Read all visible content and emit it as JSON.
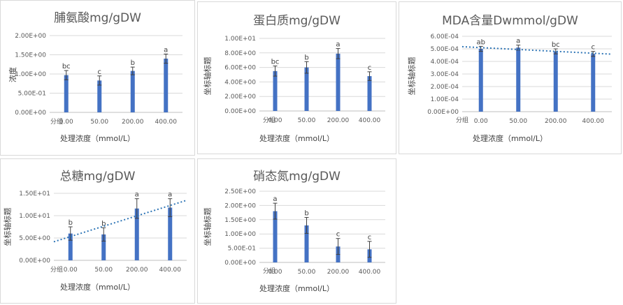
{
  "colors": {
    "bar": "#4472c4",
    "trend": "#2e75b6",
    "grid": "#d9d9d9",
    "axis": "#bfbfbf",
    "error": "#404040"
  },
  "chart_data": [
    {
      "type": "bar",
      "title": "脯氨酸mg/gDW",
      "ylabel": "浓度",
      "xlabel": "处理浓度（mmol/L）",
      "group_label": "分组",
      "categories": [
        "0.00",
        "50.00",
        "200.00",
        "400.00"
      ],
      "values": [
        0.97,
        0.83,
        1.08,
        1.4
      ],
      "errors": [
        0.12,
        0.12,
        0.1,
        0.12
      ],
      "letters": [
        "bc",
        "c",
        "b",
        "a"
      ],
      "ylim": [
        0,
        2.0
      ],
      "yticks": [
        "0.00E+00",
        "5.00E-01",
        "1.00E+00",
        "1.50E+00",
        "2.00E+00"
      ],
      "grid": true,
      "trendline": false
    },
    {
      "type": "bar",
      "title": "蛋白质mg/gDW",
      "ylabel": "坐标轴标题",
      "xlabel": "处理浓度（mmol/L）",
      "group_label": "分组",
      "categories": [
        "0.00",
        "50.00",
        "200.00",
        "400.00"
      ],
      "values": [
        5.5,
        6.0,
        7.9,
        4.8
      ],
      "errors": [
        0.7,
        0.8,
        0.7,
        0.6
      ],
      "letters": [
        "bc",
        "b",
        "a",
        "c"
      ],
      "ylim": [
        0,
        10
      ],
      "yticks": [
        "0.00E+00",
        "2.00E+00",
        "4.00E+00",
        "6.00E+00",
        "8.00E+00",
        "1.00E+01"
      ],
      "grid": true,
      "trendline": false
    },
    {
      "type": "bar",
      "title": "MDA含量Dwmmol/gDW",
      "ylabel": "坐标轴标题",
      "xlabel": "处理浓度（mmol/L）",
      "group_label": "分组",
      "categories": [
        "0.00",
        "50.00",
        "200.00",
        "400.00"
      ],
      "values": [
        0.0005,
        0.00051,
        0.00048,
        0.00046
      ],
      "errors": [
        2e-05,
        2e-05,
        2e-05,
        2e-05
      ],
      "letters": [
        "ab",
        "a",
        "bc",
        "c"
      ],
      "ylim": [
        0,
        0.0006
      ],
      "yticks": [
        "0.00E+00",
        "1.00E-04",
        "2.00E-04",
        "3.00E-04",
        "4.00E-04",
        "5.00E-04",
        "6.00E-04"
      ],
      "grid": true,
      "trendline": true
    },
    {
      "type": "bar",
      "title": "总糖mg/gDW",
      "ylabel": "坐标轴标题",
      "xlabel": "处理浓度（mmol/L）",
      "group_label": "分组",
      "categories": [
        "0.00",
        "50.00",
        "200.00",
        "400.00"
      ],
      "values": [
        6.0,
        5.8,
        11.6,
        11.8
      ],
      "errors": [
        1.5,
        1.5,
        2.2,
        2.0
      ],
      "letters": [
        "b",
        "b",
        "a",
        "a"
      ],
      "ylim": [
        0,
        15
      ],
      "yticks": [
        "0.00E+00",
        "5.00E+00",
        "1.00E+01",
        "1.50E+01"
      ],
      "grid": true,
      "trendline": true
    },
    {
      "type": "bar",
      "title": "硝态氮mg/gDW",
      "ylabel": "坐标轴标题",
      "xlabel": "处理浓度（mmol/L）",
      "group_label": "分组",
      "categories": [
        "0.00",
        "50.00",
        "200.00",
        "400.00"
      ],
      "values": [
        1.8,
        1.3,
        0.56,
        0.46
      ],
      "errors": [
        0.28,
        0.28,
        0.28,
        0.28
      ],
      "letters": [
        "a",
        "b",
        "c",
        "c"
      ],
      "ylim": [
        0,
        2.5
      ],
      "yticks": [
        "0.00E+00",
        "5.00E-01",
        "1.00E+00",
        "1.50E+00",
        "2.00E+00",
        "2.50E+00"
      ],
      "grid": true,
      "trendline": false
    }
  ]
}
